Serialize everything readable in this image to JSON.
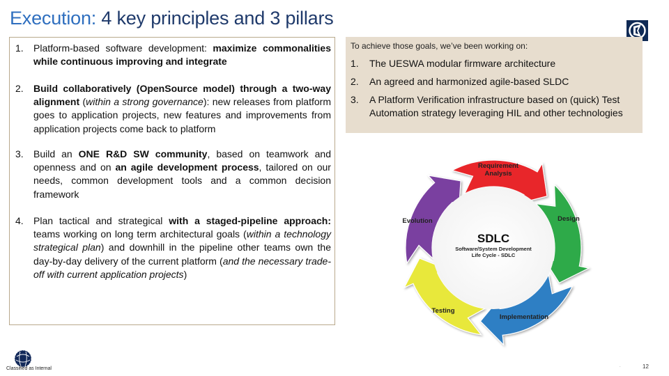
{
  "title": {
    "accent": "Execution:",
    "rest": " 4 key principles and 3 pillars"
  },
  "principles": [
    {
      "num": "1.",
      "runs": [
        {
          "t": "Platform-based software development: "
        },
        {
          "t": "maximize commonalities while continuous improving and integrate",
          "b": true
        }
      ]
    },
    {
      "num": "2.",
      "runs": [
        {
          "t": "Build collaboratively (OpenSource model) through a two-way alignment",
          "b": true
        },
        {
          "t": " ("
        },
        {
          "t": "within a strong governance",
          "i": true
        },
        {
          "t": "): new releases from platform goes to application projects, new features and improvements from application projects come back to platform"
        }
      ]
    },
    {
      "num": "3.",
      "runs": [
        {
          "t": "Build an "
        },
        {
          "t": "ONE R&D SW community",
          "b": true
        },
        {
          "t": ", based on teamwork and openness and on "
        },
        {
          "t": "an agile development process",
          "b": true
        },
        {
          "t": ", tailored on our needs, common development tools and a common decision framework"
        }
      ]
    },
    {
      "num": "4.",
      "runs": [
        {
          "t": "Plan tactical and strategical "
        },
        {
          "t": "with a staged-pipeline approach:",
          "b": true
        },
        {
          "t": " teams working on long term architectural goals ("
        },
        {
          "t": "within a technology strategical plan",
          "i": true
        },
        {
          "t": ") and downhill in the pipeline other teams own the day-by-day delivery of the current platform ("
        },
        {
          "t": "and the necessary trade-off with current application projects",
          "i": true
        },
        {
          "t": ")"
        }
      ]
    }
  ],
  "pillars": {
    "intro": "To achieve those goals, we’ve been working on:",
    "items": [
      {
        "num": "1.",
        "text": "The UESWA modular firmware architecture"
      },
      {
        "num": "2.",
        "text": "An agreed and harmonized agile-based SLDC"
      },
      {
        "num": "3.",
        "text": "A Platform Verification infrastructure based on (quick) Test Automation strategy leveraging HIL and other technologies"
      }
    ]
  },
  "sdlc": {
    "center_title": "SDLC",
    "center_sub1": "Software/System Development",
    "center_sub2": "Life Cycle - SDLC",
    "stages": [
      {
        "line1": "Requirement",
        "line2": "Analysis",
        "color": "#e8262b"
      },
      {
        "line1": "Design",
        "line2": "",
        "color": "#2eaa4a"
      },
      {
        "line1": "Implementation",
        "line2": "",
        "color": "#2f7fc4"
      },
      {
        "line1": "Testing",
        "line2": "",
        "color": "#e8e83a"
      },
      {
        "line1": "Evolution",
        "line2": "",
        "color": "#7a3fa0"
      }
    ]
  },
  "footer": {
    "classification": "Classified as Internal",
    "page": "12",
    "dot": "."
  }
}
